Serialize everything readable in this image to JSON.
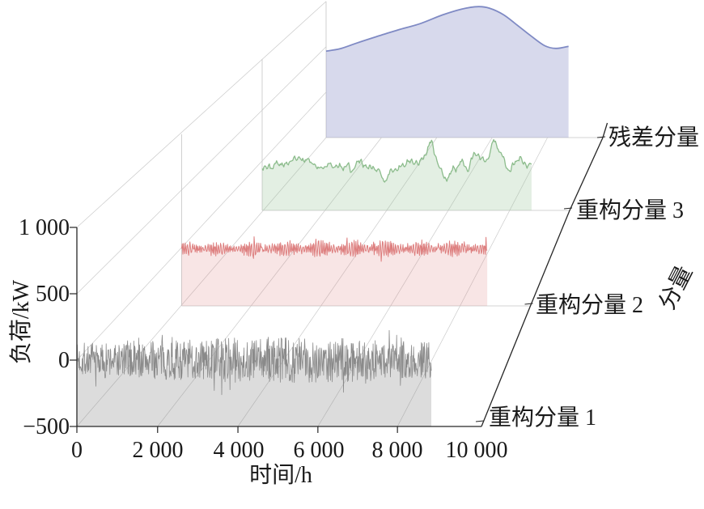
{
  "figure": {
    "background": "#ffffff",
    "text_color": "#1a1a1a",
    "axis_color": "#262626",
    "grid_color": "#cbcbcb",
    "pane_edge_color": "#c4c4c4"
  },
  "chart_data": {
    "type": "area",
    "projection": "3d-waterfall",
    "title": "",
    "xlabel": "时间/h",
    "ylabel": "负荷/kW",
    "depth_axis_label": "分量",
    "x_range": [
      0,
      10000
    ],
    "z_range": [
      -500,
      1000
    ],
    "t_max": 8760,
    "grid": true,
    "x_ticks": [
      "0",
      "2 000",
      "4 000",
      "6 000",
      "8 000",
      "10 000"
    ],
    "x_tick_values": [
      0,
      2000,
      4000,
      6000,
      8000,
      10000
    ],
    "y_ticks": [
      "1 000",
      "500",
      "0",
      "−500"
    ],
    "y_tick_values": [
      1000,
      500,
      0,
      -500
    ],
    "series": [
      {
        "name": "重构分量 1",
        "depth": 0,
        "kind": "noise",
        "line_color": "#8a8a8a",
        "fill_color": "rgba(130,130,130,0.28)",
        "line_width": 0.8,
        "description": "zero-mean dense high-frequency noise, amplitude ±110 kW at edges rising to ±180 kW mid-series",
        "synthesis": {
          "style": "dense",
          "seed": 7,
          "n": 860,
          "amp_base": 112,
          "amp_peak_extra": 62,
          "amp_peak_u": 0.58,
          "amp_peak_width": 0.3,
          "spike_prob": 0.05,
          "spike_gain": 1.6
        }
      },
      {
        "name": "重构分量 2",
        "depth": 1,
        "kind": "noise",
        "line_color": "#dd7e7e",
        "fill_color": "rgba(221,126,126,0.20)",
        "line_width": 1.0,
        "description": "zero-mean high-frequency oscillation, amplitude ±55 kW with bursts to ±120 kW",
        "synthesis": {
          "style": "osc",
          "seed": 11,
          "n": 520,
          "carrier_freq": 1.9,
          "fm": [
            0.23,
            2.5
          ],
          "amp_base": 40,
          "amp_mod": [
            0.11,
            16
          ],
          "jitter": 11,
          "spike_prob": 0.05,
          "spike_amp": 70,
          "mid_boost": 0.3
        }
      },
      {
        "name": "重构分量 3",
        "depth": 2,
        "kind": "noise",
        "line_color": "#8cbc8c",
        "fill_color": "rgba(143,190,143,0.25)",
        "line_width": 1.3,
        "description": "slowly wandering component near -50 kW with spikes to ~+200 kW and dips to ~-200 kW",
        "synthesis": {
          "style": "walk",
          "seed": 23,
          "n": 300,
          "base": -45,
          "walk_decay": 0.88,
          "walk_step": 26,
          "wiggle": [
            [
              0.55,
              18
            ],
            [
              1.35,
              10
            ]
          ],
          "bumps": [
            [
              0.625,
              0.016,
              235
            ],
            [
              0.865,
              0.02,
              205
            ],
            [
              0.79,
              0.014,
              95
            ],
            [
              0.46,
              0.018,
              -110
            ],
            [
              0.685,
              0.016,
              -130
            ],
            [
              0.33,
              0.013,
              -85
            ],
            [
              0.955,
              0.012,
              90
            ]
          ]
        }
      },
      {
        "name": "残差分量",
        "depth": 3,
        "kind": "smooth",
        "line_color": "#7f8ac4",
        "fill_color": "rgba(130,137,197,0.32)",
        "line_width": 1.8,
        "description": "smooth residual trend rising from ~450 kW to peak ~940 kW near 5 500 h then falling to ~480 kW",
        "points": {
          "t": [
            0,
            500,
            1100,
            1800,
            2600,
            3400,
            4200,
            4900,
            5500,
            5900,
            6400,
            6900,
            7400,
            7900,
            8300,
            8760
          ],
          "value": [
            452,
            478,
            540,
            610,
            685,
            755,
            850,
            915,
            942,
            925,
            855,
            740,
            620,
            512,
            482,
            505
          ]
        }
      }
    ]
  }
}
